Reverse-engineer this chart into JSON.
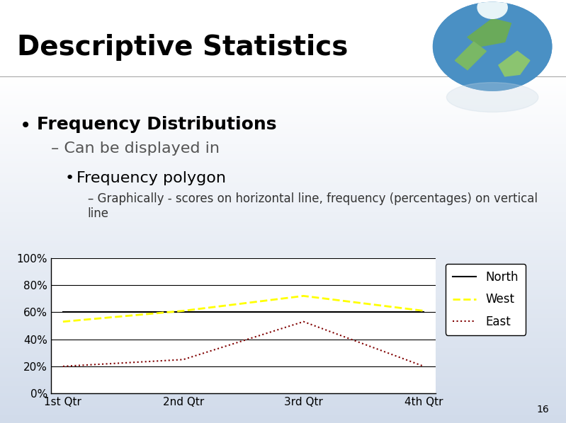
{
  "title": "Descriptive Statistics",
  "bullet1": "Frequency Distributions",
  "sub1": "Can be displayed in",
  "bullet2": "Frequency polygon",
  "sub2": "Graphically - scores on horizontal line, frequency (percentages) on vertical\nline",
  "categories": [
    "1st Qtr",
    "2nd Qtr",
    "3rd Qtr",
    "4th Qtr"
  ],
  "west_values": [
    0.53,
    0.61,
    0.72,
    0.61
  ],
  "east_values": [
    0.2,
    0.25,
    0.53,
    0.2
  ],
  "north_values": [
    0.6,
    0.6,
    0.6,
    0.6
  ],
  "west_color": "#FFFF00",
  "east_color": "#800000",
  "north_color": "#000000",
  "north_label": "North",
  "west_label": "West",
  "east_label": "East",
  "yticks": [
    "0%",
    "20%",
    "40%",
    "60%",
    "80%",
    "100%"
  ],
  "ytick_vals": [
    0,
    0.2,
    0.4,
    0.6,
    0.8,
    1.0
  ],
  "slide_number": "16",
  "title_fontsize": 28,
  "body_fontsize": 18,
  "sub_fontsize": 16,
  "chart_fontsize": 11
}
